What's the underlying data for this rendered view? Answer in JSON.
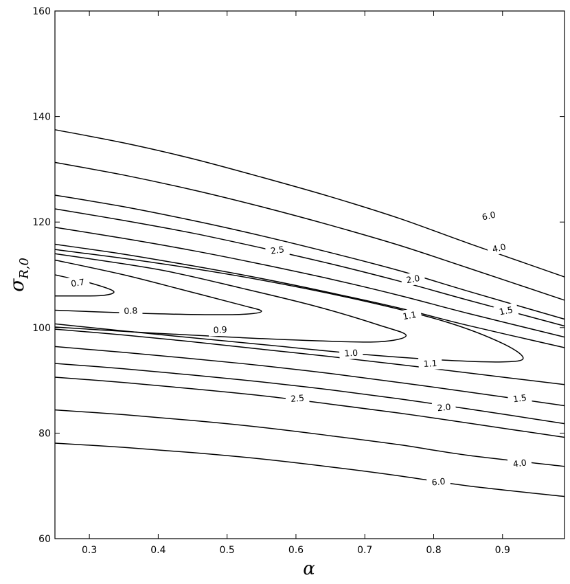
{
  "chart_data": {
    "type": "contour",
    "title": "",
    "xlabel": "α",
    "ylabel": "σ",
    "ylabel_subscript": "R,0",
    "xlim": [
      0.25,
      0.99
    ],
    "ylim": [
      60,
      160
    ],
    "x_ticks": [
      "0.3",
      "0.4",
      "0.5",
      "0.6",
      "0.7",
      "0.8",
      "0.9"
    ],
    "y_ticks": [
      "60",
      "80",
      "100",
      "120",
      "140",
      "160"
    ],
    "grid": false,
    "contours": [
      {
        "level": "6.0",
        "label": "6.0",
        "points": [
          [
            0.25,
            137.5
          ],
          [
            0.35,
            135.0
          ],
          [
            0.45,
            132.0
          ],
          [
            0.55,
            128.5
          ],
          [
            0.65,
            124.8
          ],
          [
            0.75,
            120.7
          ],
          [
            0.85,
            116.0
          ],
          [
            0.99,
            109.6
          ]
        ]
      },
      {
        "level": "4.0",
        "label": "4.0",
        "points": [
          [
            0.25,
            131.3
          ],
          [
            0.35,
            128.9
          ],
          [
            0.45,
            126.1
          ],
          [
            0.55,
            122.9
          ],
          [
            0.65,
            119.4
          ],
          [
            0.75,
            115.6
          ],
          [
            0.85,
            111.3
          ],
          [
            0.99,
            105.2
          ]
        ]
      },
      {
        "level": "2.5",
        "label": "2.5",
        "points": [
          [
            0.25,
            125.1
          ],
          [
            0.35,
            122.9
          ],
          [
            0.45,
            120.3
          ],
          [
            0.55,
            117.4
          ],
          [
            0.65,
            114.2
          ],
          [
            0.75,
            110.8
          ],
          [
            0.85,
            106.9
          ],
          [
            0.99,
            101.6
          ]
        ]
      },
      {
        "level": "2.0",
        "label": "2.0",
        "points": [
          [
            0.25,
            122.5
          ],
          [
            0.35,
            120.3
          ],
          [
            0.45,
            117.9
          ],
          [
            0.55,
            115.1
          ],
          [
            0.65,
            112.1
          ],
          [
            0.75,
            108.8
          ],
          [
            0.85,
            105.2
          ],
          [
            0.99,
            100.3
          ]
        ]
      },
      {
        "level": "1.5",
        "label": "1.5",
        "points": [
          [
            0.25,
            119.0
          ],
          [
            0.35,
            116.9
          ],
          [
            0.45,
            114.6
          ],
          [
            0.55,
            112.0
          ],
          [
            0.65,
            109.2
          ],
          [
            0.75,
            106.1
          ],
          [
            0.85,
            102.7
          ],
          [
            0.99,
            98.2
          ]
        ]
      },
      {
        "level": "1.1",
        "label": "1.1",
        "points": [
          [
            0.25,
            115.8
          ],
          [
            0.35,
            113.9
          ],
          [
            0.45,
            111.7
          ],
          [
            0.55,
            109.3
          ],
          [
            0.65,
            106.6
          ],
          [
            0.75,
            103.7
          ],
          [
            0.85,
            100.4
          ],
          [
            0.99,
            96.2
          ]
        ]
      },
      {
        "level": "1.0",
        "label": "1.0",
        "points": [
          [
            0.25,
            114.8
          ],
          [
            0.4,
            112.2
          ],
          [
            0.55,
            109.0
          ],
          [
            0.7,
            105.0
          ],
          [
            0.82,
            101.0
          ],
          [
            0.9,
            97.0
          ],
          [
            0.93,
            94.2
          ],
          [
            0.9,
            93.5
          ],
          [
            0.82,
            93.8
          ],
          [
            0.7,
            94.9
          ],
          [
            0.55,
            96.8
          ],
          [
            0.4,
            98.7
          ],
          [
            0.25,
            100.7
          ]
        ]
      },
      {
        "level": "0.9",
        "label": "0.9",
        "points": [
          [
            0.25,
            114.0
          ],
          [
            0.4,
            111.0
          ],
          [
            0.52,
            107.5
          ],
          [
            0.63,
            104.0
          ],
          [
            0.72,
            100.5
          ],
          [
            0.76,
            98.5
          ],
          [
            0.72,
            97.3
          ],
          [
            0.63,
            97.5
          ],
          [
            0.52,
            98.1
          ],
          [
            0.4,
            98.9
          ],
          [
            0.25,
            100.1
          ]
        ]
      },
      {
        "level": "0.8",
        "label": "0.8",
        "points": [
          [
            0.25,
            112.8
          ],
          [
            0.35,
            110.0
          ],
          [
            0.44,
            107.0
          ],
          [
            0.52,
            104.3
          ],
          [
            0.55,
            103.1
          ],
          [
            0.52,
            102.5
          ],
          [
            0.44,
            102.5
          ],
          [
            0.35,
            102.8
          ],
          [
            0.25,
            103.3
          ]
        ]
      },
      {
        "level": "0.7",
        "label": "0.7",
        "points": [
          [
            0.25,
            110.0
          ],
          [
            0.3,
            108.5
          ],
          [
            0.335,
            106.9
          ],
          [
            0.32,
            106.1
          ],
          [
            0.28,
            106.0
          ],
          [
            0.25,
            106.0
          ]
        ]
      },
      {
        "level": "1.1",
        "label": "1.1",
        "points": [
          [
            0.25,
            99.7
          ],
          [
            0.35,
            98.6
          ],
          [
            0.45,
            97.3
          ],
          [
            0.55,
            95.9
          ],
          [
            0.65,
            94.5
          ],
          [
            0.75,
            93.0
          ],
          [
            0.85,
            91.4
          ],
          [
            0.99,
            89.2
          ]
        ]
      },
      {
        "level": "1.5",
        "label": "1.5",
        "points": [
          [
            0.25,
            96.4
          ],
          [
            0.35,
            95.3
          ],
          [
            0.45,
            94.1
          ],
          [
            0.55,
            92.8
          ],
          [
            0.65,
            91.3
          ],
          [
            0.75,
            89.6
          ],
          [
            0.85,
            87.8
          ],
          [
            0.99,
            85.2
          ]
        ]
      },
      {
        "level": "2.0",
        "label": "2.0",
        "points": [
          [
            0.25,
            93.2
          ],
          [
            0.35,
            92.2
          ],
          [
            0.45,
            91.0
          ],
          [
            0.55,
            89.7
          ],
          [
            0.65,
            88.2
          ],
          [
            0.75,
            86.5
          ],
          [
            0.85,
            84.6
          ],
          [
            0.99,
            81.8
          ]
        ]
      },
      {
        "level": "2.5",
        "label": "2.5",
        "points": [
          [
            0.25,
            90.6
          ],
          [
            0.35,
            89.6
          ],
          [
            0.45,
            88.4
          ],
          [
            0.55,
            87.1
          ],
          [
            0.65,
            85.5
          ],
          [
            0.75,
            83.8
          ],
          [
            0.85,
            81.9
          ],
          [
            0.99,
            79.2
          ]
        ]
      },
      {
        "level": "4.0",
        "label": "4.0",
        "points": [
          [
            0.25,
            84.4
          ],
          [
            0.35,
            83.5
          ],
          [
            0.45,
            82.4
          ],
          [
            0.55,
            81.1
          ],
          [
            0.65,
            79.5
          ],
          [
            0.75,
            77.8
          ],
          [
            0.85,
            75.8
          ],
          [
            0.99,
            73.7
          ]
        ]
      },
      {
        "level": "6.0",
        "label": "6.0",
        "points": [
          [
            0.25,
            78.1
          ],
          [
            0.35,
            77.3
          ],
          [
            0.45,
            76.3
          ],
          [
            0.55,
            75.1
          ],
          [
            0.65,
            73.6
          ],
          [
            0.75,
            71.9
          ],
          [
            0.85,
            70.0
          ],
          [
            0.99,
            68.0
          ]
        ]
      }
    ],
    "labels": [
      {
        "text": "6.0",
        "x": 0.88,
        "y": 121.2,
        "angle": -12
      },
      {
        "text": "4.0",
        "x": 0.895,
        "y": 115.1,
        "angle": -13
      },
      {
        "text": "2.5",
        "x": 0.573,
        "y": 114.7,
        "angle": -8
      },
      {
        "text": "2.0",
        "x": 0.77,
        "y": 109.2,
        "angle": -10
      },
      {
        "text": "1.5",
        "x": 0.905,
        "y": 103.2,
        "angle": -11
      },
      {
        "text": "1.1",
        "x": 0.765,
        "y": 102.3,
        "angle": -10
      },
      {
        "text": "0.7",
        "x": 0.283,
        "y": 108.5,
        "angle": -8
      },
      {
        "text": "0.8",
        "x": 0.36,
        "y": 103.2,
        "angle": -2
      },
      {
        "text": "0.9",
        "x": 0.49,
        "y": 99.6,
        "angle": -3
      },
      {
        "text": "1.0",
        "x": 0.68,
        "y": 95.2,
        "angle": -3
      },
      {
        "text": "1.1",
        "x": 0.795,
        "y": 93.2,
        "angle": -3
      },
      {
        "text": "1.5",
        "x": 0.925,
        "y": 86.6,
        "angle": -8
      },
      {
        "text": "2.0",
        "x": 0.815,
        "y": 84.9,
        "angle": -6
      },
      {
        "text": "2.5",
        "x": 0.602,
        "y": 86.6,
        "angle": -5
      },
      {
        "text": "4.0",
        "x": 0.925,
        "y": 74.3,
        "angle": -8
      },
      {
        "text": "6.0",
        "x": 0.807,
        "y": 70.8,
        "angle": -5
      }
    ]
  }
}
